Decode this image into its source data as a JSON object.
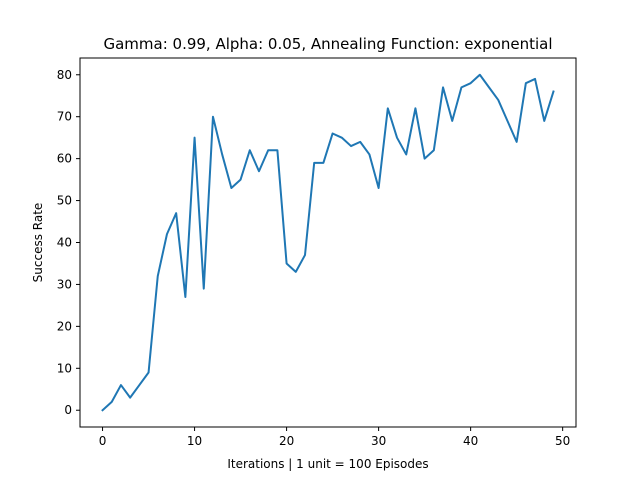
{
  "chart_data": {
    "type": "line",
    "title": "Gamma: 0.99, Alpha: 0.05, Annealing Function: exponential",
    "xlabel": "Iterations | 1 unit = 100 Episodes",
    "ylabel": "Success Rate",
    "xlim": [
      -2.45,
      51.45
    ],
    "ylim": [
      -4,
      84
    ],
    "xticks": [
      0,
      10,
      20,
      30,
      40,
      50
    ],
    "yticks": [
      0,
      10,
      20,
      30,
      40,
      50,
      60,
      70,
      80
    ],
    "grid": false,
    "line_color": "#1f77b4",
    "x": [
      0,
      1,
      2,
      3,
      4,
      5,
      6,
      7,
      8,
      9,
      10,
      11,
      12,
      13,
      14,
      15,
      16,
      17,
      18,
      19,
      20,
      21,
      22,
      23,
      24,
      25,
      26,
      27,
      28,
      29,
      30,
      31,
      32,
      33,
      34,
      35,
      36,
      37,
      38,
      39,
      40,
      41,
      42,
      43,
      44,
      45,
      46,
      47,
      48,
      49
    ],
    "y": [
      0,
      2,
      6,
      3,
      6,
      9,
      32,
      42,
      47,
      27,
      65,
      29,
      70,
      61,
      53,
      55,
      62,
      57,
      62,
      62,
      35,
      33,
      37,
      59,
      59,
      66,
      65,
      63,
      64,
      61,
      53,
      72,
      65,
      61,
      72,
      60,
      62,
      77,
      69,
      77,
      78,
      80,
      77,
      74,
      69,
      64,
      78,
      79,
      69,
      76
    ]
  }
}
